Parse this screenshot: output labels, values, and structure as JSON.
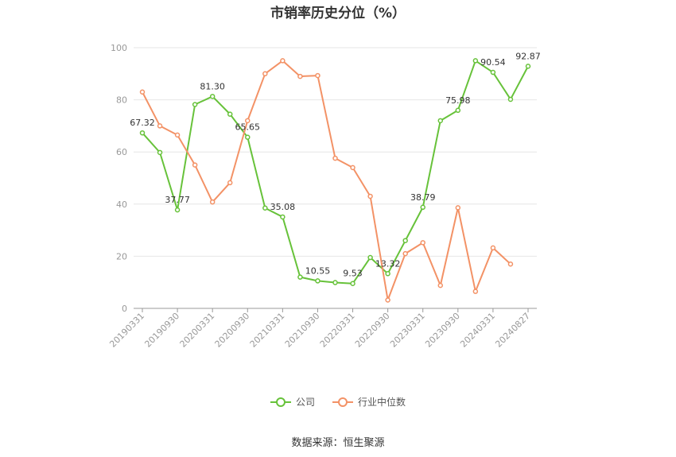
{
  "chart_data": {
    "type": "line",
    "title": "市销率历史分位（%）",
    "ylim": [
      0,
      100
    ],
    "yticks": [
      "0",
      "20",
      "40",
      "60",
      "80",
      "100"
    ],
    "x": [
      "20190331",
      "20190630",
      "20190930",
      "20191231",
      "20200331",
      "20200630",
      "20200930",
      "20201231",
      "20210331",
      "20210630",
      "20210930",
      "20211231",
      "20220331",
      "20220630",
      "20220930",
      "20221231",
      "20230331",
      "20230630",
      "20230930",
      "20231231",
      "20240331",
      "20240630",
      "20240827"
    ],
    "xtick_labels": [
      "20190331",
      "",
      "20190930",
      "",
      "20200331",
      "",
      "20200930",
      "",
      "20210331",
      "",
      "20210930",
      "",
      "20220331",
      "",
      "20220930",
      "",
      "20230331",
      "",
      "20230930",
      "",
      "20240331",
      "",
      "20240827"
    ],
    "grid": true,
    "legend_position": "bottom",
    "series": [
      {
        "name": "公司",
        "color": "#67c23a",
        "values": [
          67.32,
          59.8,
          37.77,
          78.2,
          81.3,
          74.5,
          65.65,
          38.5,
          35.08,
          12.0,
          10.55,
          9.9,
          9.53,
          19.5,
          13.32,
          26.0,
          38.79,
          72.0,
          75.98,
          95.0,
          90.54,
          80.2,
          92.87
        ],
        "labels": [
          "67.32",
          "",
          "37.77",
          "",
          "81.30",
          "",
          "65.65",
          "",
          "35.08",
          "",
          "10.55",
          "",
          "9.53",
          "",
          "13.32",
          "",
          "38.79",
          "",
          "75.98",
          "",
          "90.54",
          "",
          "92.87"
        ]
      },
      {
        "name": "行业中位数",
        "color": "#f39266",
        "values": [
          83.0,
          70.0,
          66.5,
          55.0,
          40.8,
          48.2,
          72.0,
          90.0,
          95.0,
          89.0,
          89.3,
          57.6,
          54.0,
          43.0,
          3.2,
          21.0,
          25.2,
          8.8,
          38.6,
          6.5,
          23.2,
          17.0,
          null
        ],
        "labels": []
      }
    ],
    "source": "数据来源：恒生聚源"
  }
}
